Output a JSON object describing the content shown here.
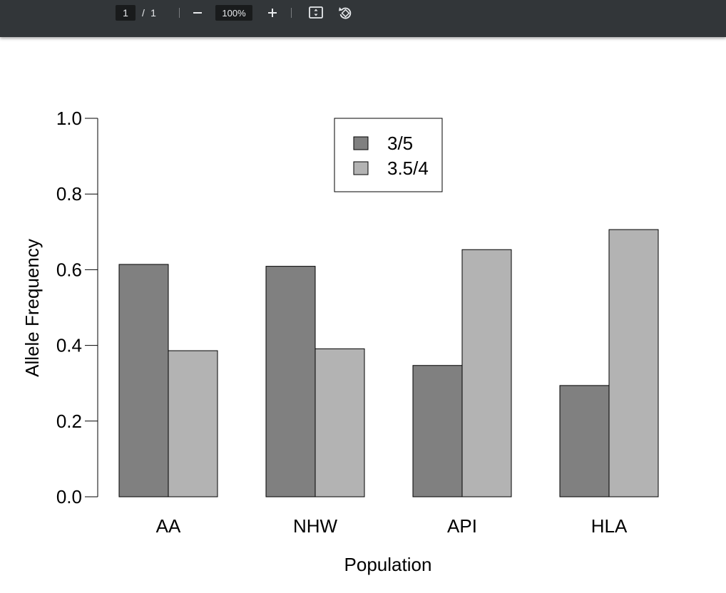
{
  "toolbar": {
    "page_current": "1",
    "page_separator": "/",
    "page_total": "1",
    "zoom": "100%",
    "zoom_out_icon": "minus-icon",
    "zoom_in_icon": "plus-icon",
    "fit_icon": "fit-to-page-icon",
    "rotate_icon": "rotate-icon"
  },
  "chart_data": {
    "type": "bar",
    "categories": [
      "AA",
      "NHW",
      "API",
      "HLA"
    ],
    "series": [
      {
        "name": "3/5",
        "color": "#808080",
        "values": [
          0.614,
          0.609,
          0.347,
          0.294
        ]
      },
      {
        "name": "3.5/4",
        "color": "#b3b3b3",
        "values": [
          0.386,
          0.391,
          0.653,
          0.706
        ]
      }
    ],
    "title": "",
    "xlabel": "Population",
    "ylabel": "Allele Frequency",
    "ylim": [
      0,
      1
    ],
    "yticks": [
      "0.0",
      "0.2",
      "0.4",
      "0.6",
      "0.8",
      "1.0"
    ],
    "grid": false,
    "legend_position": "top-center"
  }
}
